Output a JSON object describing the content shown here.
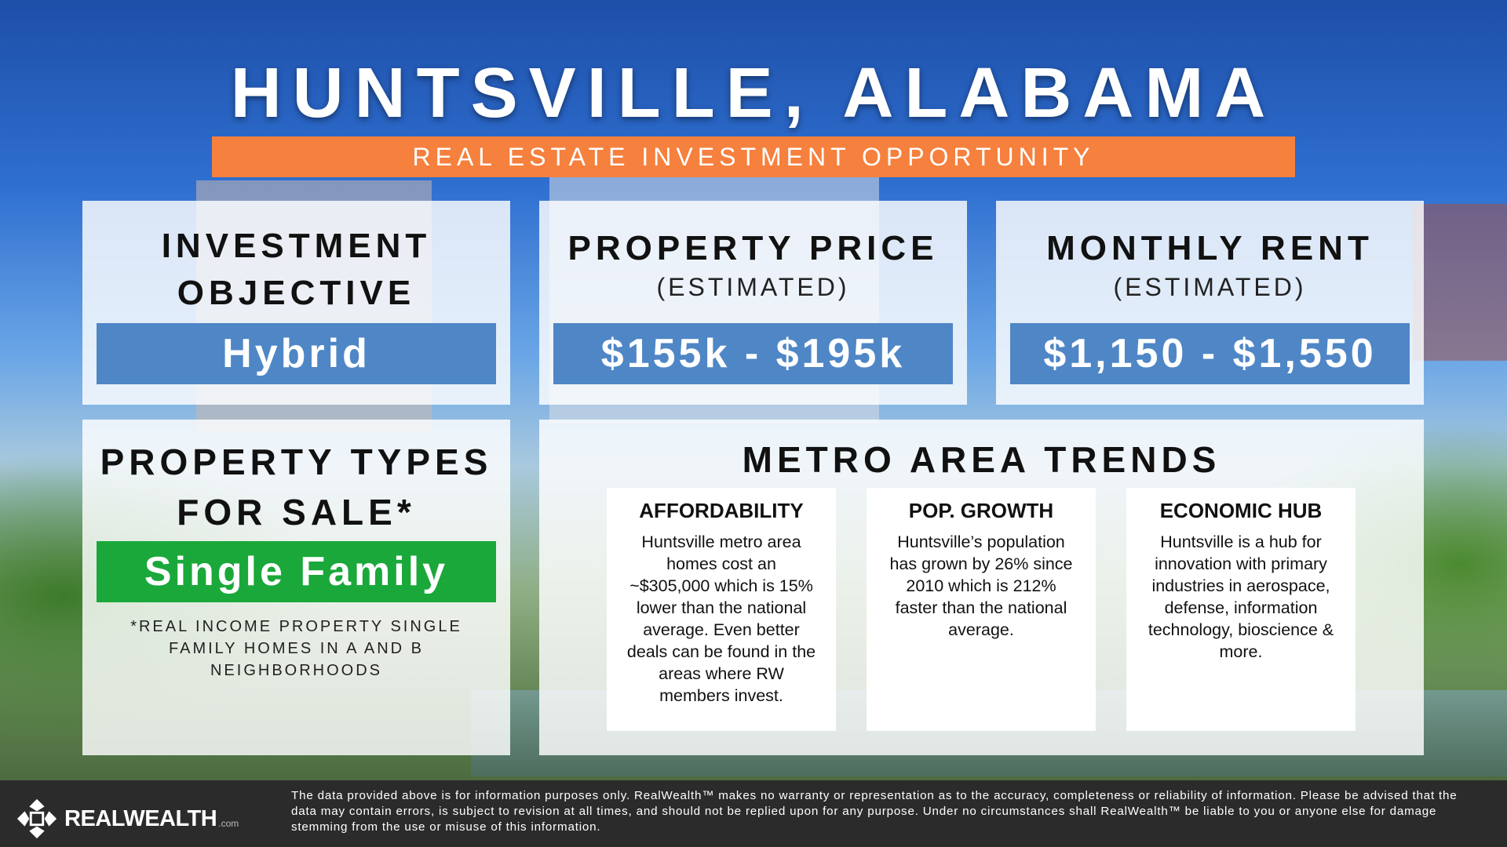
{
  "header": {
    "title": "HUNTSVILLE, ALABAMA",
    "subtitle": "REAL ESTATE INVESTMENT OPPORTUNITY"
  },
  "investment_objective": {
    "heading_line1": "INVESTMENT",
    "heading_line2": "OBJECTIVE",
    "value": "Hybrid"
  },
  "property_price": {
    "heading": "PROPERTY PRICE",
    "note": "(ESTIMATED)",
    "value": "$155k - $195k"
  },
  "monthly_rent": {
    "heading": "MONTHLY RENT",
    "note": "(ESTIMATED)",
    "value": "$1,150 - $1,550"
  },
  "property_types": {
    "heading_line1": "PROPERTY TYPES",
    "heading_line2": "FOR SALE*",
    "value": "Single Family",
    "footnote": "*REAL INCOME PROPERTY SINGLE FAMILY HOMES IN A AND B NEIGHBORHOODS"
  },
  "metro_trends": {
    "heading": "METRO AREA TRENDS",
    "cards": [
      {
        "title": "AFFORDABILITY",
        "body": "Huntsville metro area homes cost an ~$305,000 which is 15% lower than the national average. Even better deals can be found in the areas where RW members invest."
      },
      {
        "title": "POP. GROWTH",
        "body": "Huntsville’s population has grown by 26% since 2010 which is 212% faster than the national average."
      },
      {
        "title": "ECONOMIC HUB",
        "body": "Huntsville is a hub for innovation with primary industries in aerospace, defense, information technology, bioscience & more."
      }
    ]
  },
  "footer": {
    "logo_text": "REALWEALTH",
    "logo_suffix": ".com",
    "logo_icon": "realwealth-logo-icon",
    "disclaimer": "The data provided above is for information purposes only. RealWealth™ makes no warranty or representation as to the accuracy, completeness or reliability of information. Please be advised that the data may contain errors, is subject to revision at all times, and should not be replied upon for any purpose. Under no circumstances shall RealWealth™ be liable to you or anyone else for damage stemming from the use or misuse of this information."
  },
  "colors": {
    "accent_orange": "#f6803d",
    "value_blue": "#4f86c6",
    "value_green": "#1aa83a",
    "footer_bg": "#2b2b2b"
  }
}
